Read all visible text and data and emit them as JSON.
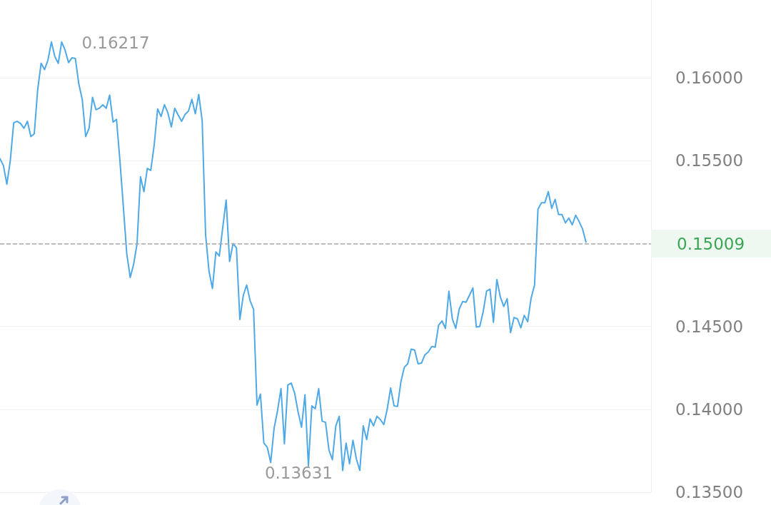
{
  "chart_data": {
    "type": "line",
    "categories": [
      null,
      null,
      null,
      null,
      null,
      null,
      null,
      null,
      null,
      null,
      null,
      null,
      null,
      null,
      null,
      null,
      null,
      null,
      null,
      null,
      null,
      null,
      null,
      null,
      null,
      null,
      null,
      null,
      null,
      null,
      null,
      null,
      null,
      null,
      null,
      null,
      null,
      null,
      null,
      null,
      null,
      null,
      null,
      null,
      null,
      null,
      null,
      null,
      null,
      null,
      null,
      null,
      null,
      null,
      null,
      null,
      null,
      null,
      null,
      null,
      null,
      null,
      null,
      null,
      null,
      null,
      null,
      null,
      null,
      null,
      null,
      null,
      null,
      null,
      null,
      null,
      null,
      null,
      null,
      null,
      null,
      null,
      null,
      null,
      null,
      null,
      null,
      null,
      null,
      null,
      null,
      null,
      null,
      null,
      null,
      null,
      null,
      null,
      null,
      null,
      null,
      null,
      null,
      null,
      null,
      null,
      null,
      null,
      null,
      null,
      null,
      null,
      null,
      null,
      null,
      null,
      null,
      null,
      null,
      null,
      null,
      null,
      null,
      null,
      null,
      null,
      null,
      null,
      null,
      null,
      null,
      null,
      null,
      null,
      null,
      null,
      null,
      null,
      null,
      null,
      null,
      null,
      null,
      null,
      null,
      null,
      null,
      null,
      null,
      null,
      null,
      null,
      null,
      null,
      null,
      null,
      null,
      null,
      null,
      null,
      null,
      null,
      null,
      null,
      null,
      null,
      null,
      null,
      null,
      null,
      null,
      null,
      null,
      null,
      null,
      null,
      null,
      null,
      null,
      null,
      null,
      null,
      null,
      null,
      null,
      null,
      null,
      null,
      null,
      null,
      null
    ],
    "series": [
      {
        "color": "#4fa9e6",
        "values": [
          0.15513,
          0.15471,
          0.15358,
          0.155,
          0.15729,
          0.15738,
          0.15725,
          0.15696,
          0.15738,
          0.15646,
          0.15663,
          0.15929,
          0.16088,
          0.1605,
          0.16108,
          0.16217,
          0.16129,
          0.16088,
          0.16217,
          0.16167,
          0.16092,
          0.16121,
          0.16117,
          0.15963,
          0.15871,
          0.15646,
          0.15696,
          0.15883,
          0.15808,
          0.15817,
          0.15838,
          0.15817,
          0.15896,
          0.15733,
          0.1575,
          0.155,
          0.15221,
          0.14938,
          0.14796,
          0.14875,
          0.15,
          0.15404,
          0.15313,
          0.15454,
          0.15442,
          0.15596,
          0.15813,
          0.15767,
          0.15838,
          0.15788,
          0.15704,
          0.15817,
          0.15775,
          0.15738,
          0.15779,
          0.158,
          0.15871,
          0.15783,
          0.159,
          0.15742,
          0.15054,
          0.14833,
          0.14729,
          0.1495,
          0.14925,
          0.15096,
          0.15263,
          0.14892,
          0.15,
          0.14975,
          0.14542,
          0.14688,
          0.1475,
          0.14654,
          0.14604,
          0.14025,
          0.14092,
          0.13796,
          0.13771,
          0.13679,
          0.13888,
          0.13992,
          0.14125,
          0.13792,
          0.14146,
          0.14158,
          0.14096,
          0.13983,
          0.13892,
          0.14088,
          0.13658,
          0.14021,
          0.14004,
          0.14125,
          0.13929,
          0.13921,
          0.13754,
          0.13696,
          0.139,
          0.13958,
          0.13631,
          0.13796,
          0.13671,
          0.13813,
          0.137,
          0.13631,
          0.139,
          0.13817,
          0.13942,
          0.139,
          0.13958,
          0.13938,
          0.13908,
          0.14,
          0.14129,
          0.14021,
          0.14017,
          0.14167,
          0.14254,
          0.14275,
          0.14363,
          0.14358,
          0.14275,
          0.14279,
          0.14329,
          0.14346,
          0.14379,
          0.14375,
          0.14508,
          0.14533,
          0.14488,
          0.14713,
          0.14546,
          0.14488,
          0.14604,
          0.1465,
          0.14646,
          0.14688,
          0.14733,
          0.14496,
          0.145,
          0.14588,
          0.14713,
          0.14725,
          0.14525,
          0.14783,
          0.14679,
          0.14621,
          0.14667,
          0.14463,
          0.14554,
          0.14546,
          0.14492,
          0.14567,
          0.14529,
          0.14671,
          0.1475,
          0.15208,
          0.15246,
          0.15246,
          0.15313,
          0.15213,
          0.15267,
          0.15175,
          0.15175,
          0.15125,
          0.15154,
          0.15113,
          0.15171,
          0.15133,
          0.15088,
          0.15009,
          null,
          null,
          null,
          null,
          null,
          null,
          null,
          null,
          null,
          null,
          null,
          null,
          null,
          null,
          null,
          null,
          null,
          null,
          null
        ]
      }
    ],
    "ylim": [
      0.135,
      0.1647
    ],
    "yticks": [
      {
        "value": 0.135,
        "label": "0.13500"
      },
      {
        "value": 0.14,
        "label": "0.14000"
      },
      {
        "value": 0.145,
        "label": "0.14500"
      },
      {
        "value": 0.15,
        "label": null
      },
      {
        "value": 0.155,
        "label": "0.15500"
      },
      {
        "value": 0.16,
        "label": "0.16000"
      }
    ],
    "ref_lines": [
      {
        "axis": "y",
        "value": 0.15009,
        "label": "0.15009",
        "color": "#aaaaaa",
        "line_style": "dashed"
      }
    ],
    "annotations": [
      "0.16217",
      "0.13631"
    ],
    "grid": "y",
    "tick_labels": "y",
    "marker": "none",
    "line_style": "solid"
  }
}
